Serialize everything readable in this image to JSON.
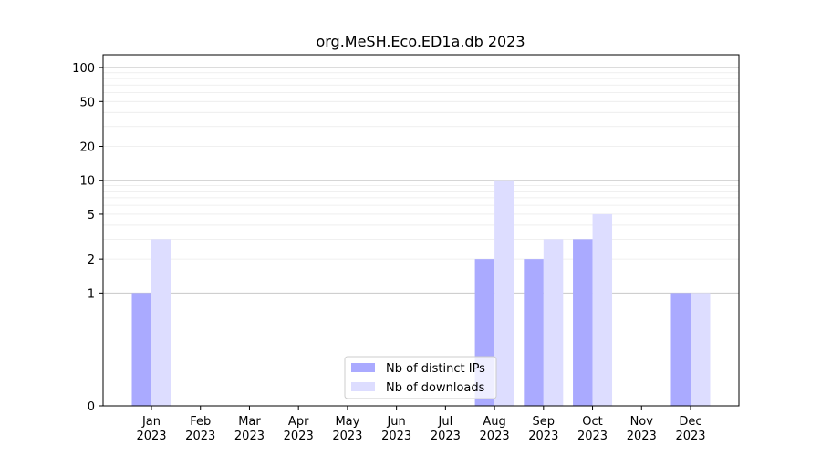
{
  "chart_data": {
    "type": "bar",
    "title": "org.MeSH.Eco.ED1a.db 2023",
    "xlabel": "",
    "ylabel": "",
    "y_scale": "symlog",
    "ylim": [
      0,
      130
    ],
    "y_ticks": [
      {
        "value": 0,
        "label": "0"
      },
      {
        "value": 1,
        "label": "1"
      },
      {
        "value": 2,
        "label": "2"
      },
      {
        "value": 5,
        "label": "5"
      },
      {
        "value": 10,
        "label": "10"
      },
      {
        "value": 20,
        "label": "20"
      },
      {
        "value": 50,
        "label": "50"
      },
      {
        "value": 100,
        "label": "100"
      }
    ],
    "categories": [
      {
        "month": "Jan",
        "year": "2023"
      },
      {
        "month": "Feb",
        "year": "2023"
      },
      {
        "month": "Mar",
        "year": "2023"
      },
      {
        "month": "Apr",
        "year": "2023"
      },
      {
        "month": "May",
        "year": "2023"
      },
      {
        "month": "Jun",
        "year": "2023"
      },
      {
        "month": "Jul",
        "year": "2023"
      },
      {
        "month": "Aug",
        "year": "2023"
      },
      {
        "month": "Sep",
        "year": "2023"
      },
      {
        "month": "Oct",
        "year": "2023"
      },
      {
        "month": "Nov",
        "year": "2023"
      },
      {
        "month": "Dec",
        "year": "2023"
      }
    ],
    "series": [
      {
        "name": "Nb of distinct IPs",
        "color": "#aaaaff",
        "values": [
          1,
          0,
          0,
          0,
          0,
          0,
          0,
          2,
          2,
          3,
          0,
          1
        ]
      },
      {
        "name": "Nb of downloads",
        "color": "#ddddff",
        "values": [
          3,
          0,
          0,
          0,
          0,
          0,
          0,
          10,
          3,
          5,
          0,
          1
        ]
      }
    ],
    "legend_position": "bottom-center",
    "grid": "horizontal"
  }
}
